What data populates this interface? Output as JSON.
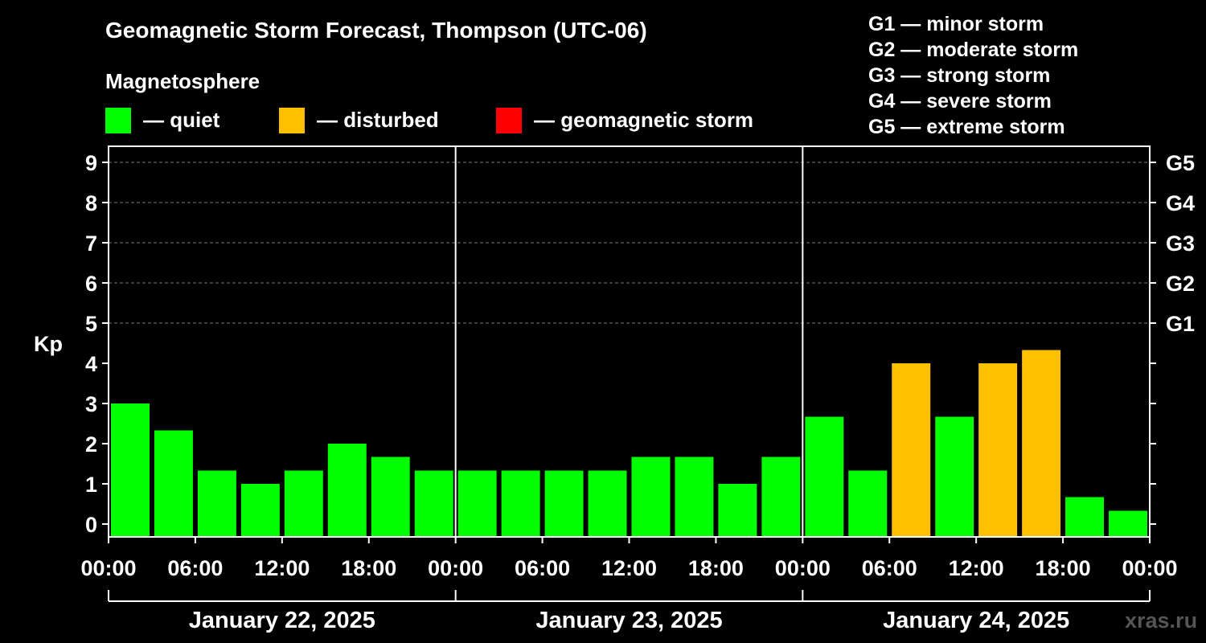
{
  "title": "Geomagnetic Storm Forecast, Thompson (UTC-06)",
  "section_label": "Magnetosphere",
  "legend": [
    {
      "label": "— quiet",
      "color": "#00ff00"
    },
    {
      "label": "— disturbed",
      "color": "#ffc000"
    },
    {
      "label": "— geomagnetic storm",
      "color": "#ff0000"
    }
  ],
  "storm_scale": [
    "G1 — minor storm",
    "G2 — moderate storm",
    "G3 — strong storm",
    "G4 — severe storm",
    "G5 — extreme storm"
  ],
  "watermark": "xras.ru",
  "chart_data": {
    "type": "bar",
    "title": "Geomagnetic Storm Forecast, Thompson (UTC-06)",
    "ylabel": "Kp",
    "ylim": [
      0,
      9
    ],
    "yticks": [
      "0",
      "1",
      "2",
      "3",
      "4",
      "5",
      "6",
      "7",
      "8",
      "9"
    ],
    "right_axis_labels": [
      {
        "kp": 5,
        "label": "G1"
      },
      {
        "kp": 6,
        "label": "G2"
      },
      {
        "kp": 7,
        "label": "G3"
      },
      {
        "kp": 8,
        "label": "G4"
      },
      {
        "kp": 9,
        "label": "G5"
      }
    ],
    "xtick_labels": [
      "00:00",
      "06:00",
      "12:00",
      "18:00",
      "00:00",
      "06:00",
      "12:00",
      "18:00",
      "00:00",
      "06:00",
      "12:00",
      "18:00",
      "00:00"
    ],
    "days": [
      "January 22, 2025",
      "January 23, 2025",
      "January 24, 2025"
    ],
    "values": [
      3.0,
      2.33,
      1.33,
      1.0,
      1.33,
      2.0,
      1.67,
      1.33,
      1.33,
      1.33,
      1.33,
      1.33,
      1.67,
      1.67,
      1.0,
      1.67,
      2.67,
      1.33,
      4.0,
      2.67,
      4.0,
      4.33,
      0.67,
      0.33
    ],
    "status": [
      "quiet",
      "quiet",
      "quiet",
      "quiet",
      "quiet",
      "quiet",
      "quiet",
      "quiet",
      "quiet",
      "quiet",
      "quiet",
      "quiet",
      "quiet",
      "quiet",
      "quiet",
      "quiet",
      "quiet",
      "quiet",
      "disturbed",
      "quiet",
      "disturbed",
      "disturbed",
      "quiet",
      "quiet"
    ],
    "colors": {
      "quiet": "#00ff00",
      "disturbed": "#ffc000",
      "storm": "#ff0000"
    },
    "grid": true
  }
}
